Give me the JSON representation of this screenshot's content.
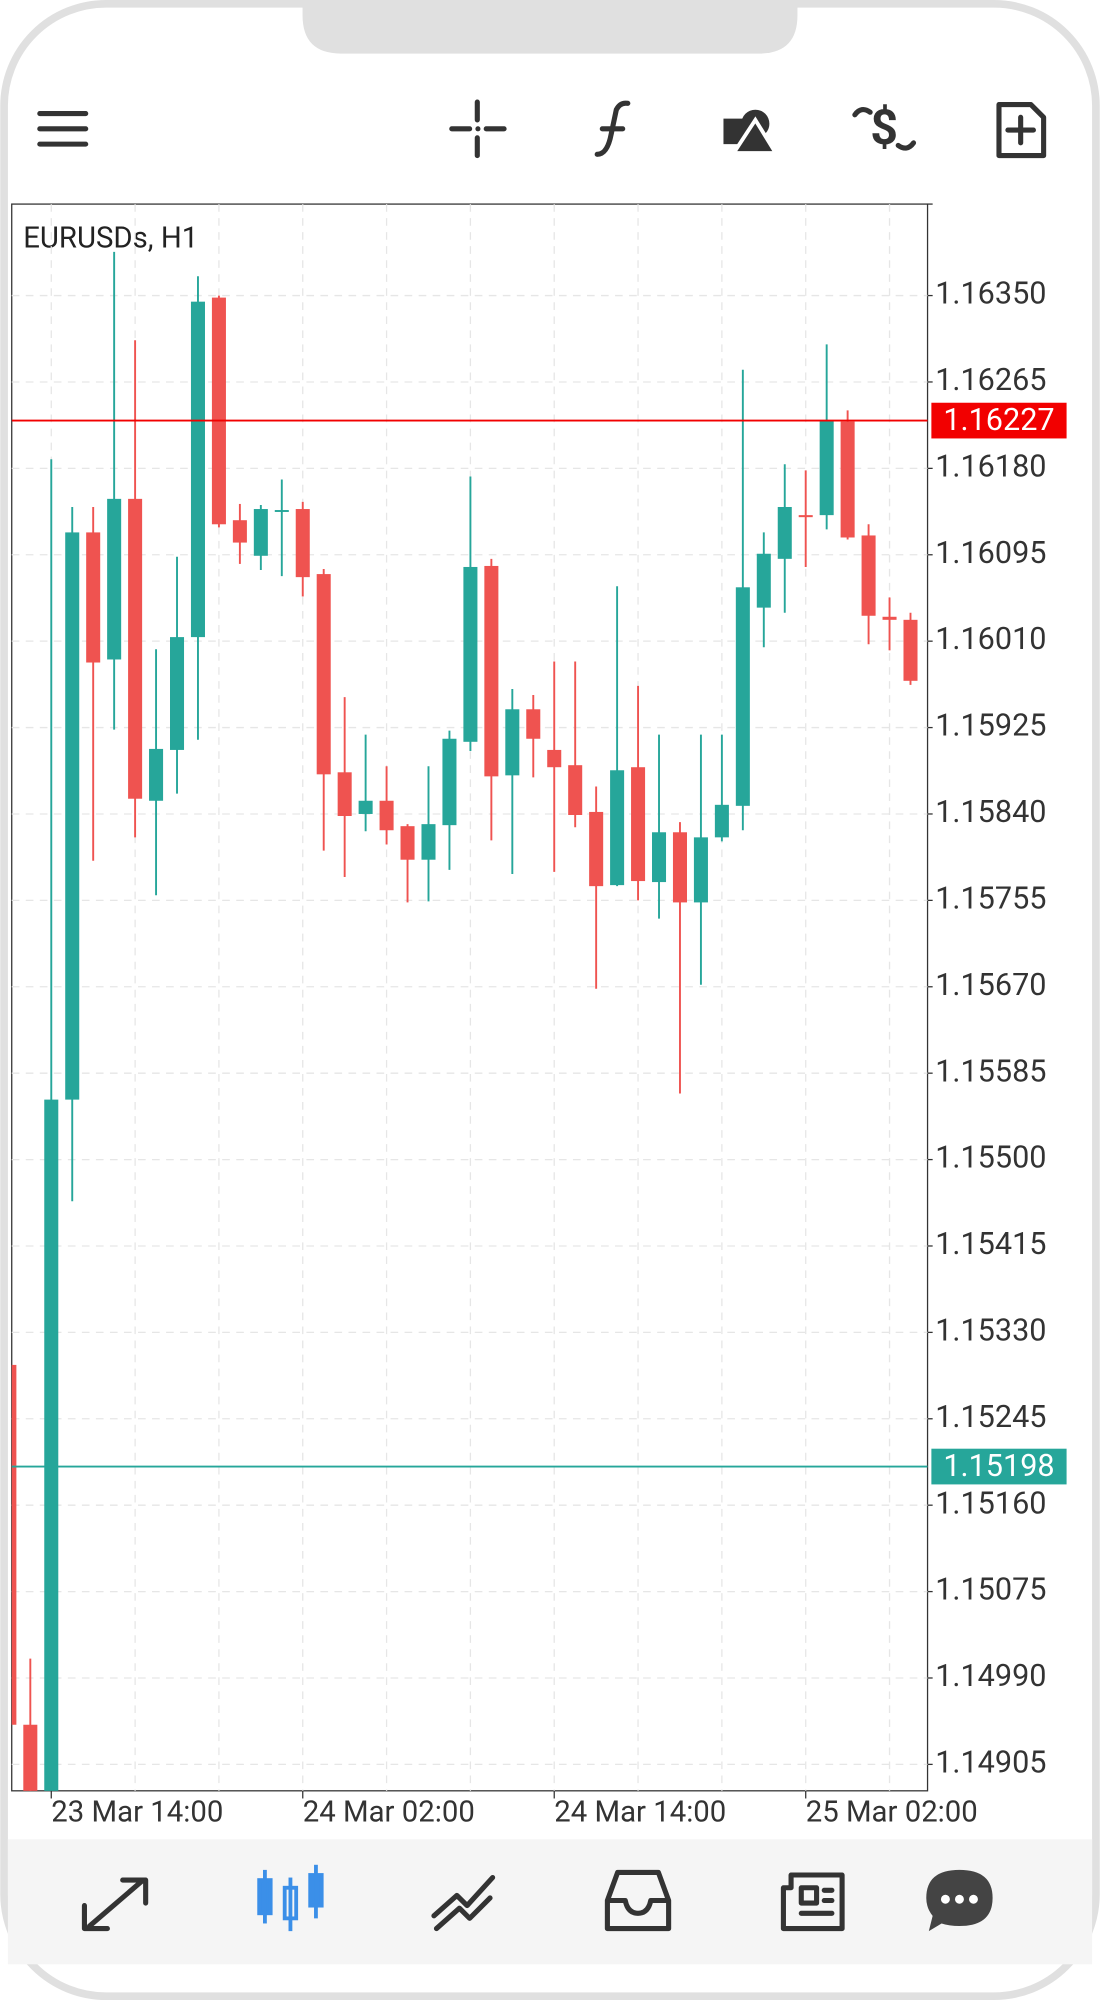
{
  "chart_data": {
    "type": "candlestick",
    "title": "EURUSDs, H1",
    "categories": [
      null,
      null,
      "23 Mar 14:00",
      null,
      null,
      null,
      null,
      null,
      null,
      null,
      null,
      null,
      null,
      null,
      "24 Mar 02:00",
      null,
      null,
      null,
      null,
      null,
      null,
      null,
      null,
      null,
      null,
      null,
      "24 Mar 14:00",
      null,
      null,
      null,
      null,
      null,
      null,
      null,
      null,
      null,
      null,
      null,
      "25 Mar 02:00",
      null,
      null,
      null,
      null,
      null
    ],
    "open": [
      1.15298,
      1.14944,
      1.14871,
      1.15559,
      1.16117,
      1.15992,
      1.1615,
      1.15853,
      1.15903,
      1.16014,
      1.16348,
      1.16129,
      1.16094,
      1.16138,
      1.1614,
      1.16076,
      1.15881,
      1.1584,
      1.15853,
      1.15828,
      1.15795,
      1.15829,
      1.15911,
      1.16084,
      1.15878,
      1.15943,
      1.15903,
      1.15888,
      1.15842,
      1.1577,
      1.15886,
      1.15773,
      1.15822,
      1.15753,
      1.15817,
      1.15848,
      1.16043,
      1.16091,
      1.16134,
      1.16134,
      1.16226,
      1.16114,
      1.16034,
      1.16031
    ],
    "high": [
      1.15298,
      1.15009,
      1.16189,
      1.16142,
      1.16142,
      1.16393,
      1.16306,
      1.16002,
      1.16093,
      1.16369,
      1.1635,
      1.16145,
      1.16144,
      1.16169,
      1.16147,
      1.16081,
      1.15955,
      1.15918,
      1.15887,
      1.1583,
      1.15887,
      1.15922,
      1.16172,
      1.16091,
      1.15963,
      1.15957,
      1.1599,
      1.1599,
      1.15867,
      1.16064,
      1.15966,
      1.15918,
      1.15832,
      1.15918,
      1.15918,
      1.16277,
      1.16117,
      1.16184,
      1.16178,
      1.16302,
      1.16237,
      1.16125,
      1.16053,
      1.16038
    ],
    "low": [
      1.14944,
      1.14859,
      1.14859,
      1.15459,
      1.15794,
      1.15923,
      1.15817,
      1.1576,
      1.1586,
      1.15913,
      1.16122,
      1.16086,
      1.1608,
      1.16074,
      1.16054,
      1.15804,
      1.15778,
      1.15823,
      1.1581,
      1.15753,
      1.15754,
      1.15785,
      1.15902,
      1.15814,
      1.15781,
      1.15876,
      1.15783,
      1.15827,
      1.15668,
      1.15769,
      1.15755,
      1.15737,
      1.15565,
      1.15672,
      1.15813,
      1.15824,
      1.16004,
      1.16038,
      1.16083,
      1.1612,
      1.1611,
      1.16007,
      1.16001,
      1.15967
    ],
    "close": [
      1.14944,
      1.14871,
      1.15559,
      1.16117,
      1.15989,
      1.1615,
      1.15855,
      1.15904,
      1.16014,
      1.16344,
      1.16125,
      1.16107,
      1.1614,
      1.16139,
      1.16073,
      1.15879,
      1.15838,
      1.15853,
      1.15824,
      1.15795,
      1.1583,
      1.15914,
      1.16083,
      1.15877,
      1.15943,
      1.15914,
      1.15886,
      1.15839,
      1.15769,
      1.15883,
      1.15774,
      1.15822,
      1.15753,
      1.15817,
      1.15849,
      1.16063,
      1.16096,
      1.16142,
      1.16132,
      1.16227,
      1.16112,
      1.16035,
      1.16031,
      1.15971
    ],
    "up_color": "#26a69a",
    "down_color": "#ef5350",
    "ylim": [
      1.14879,
      1.1644
    ],
    "yticks": [
      {
        "value": 1.1635,
        "label": "1.16350"
      },
      {
        "value": 1.16265,
        "label": "1.16265"
      },
      {
        "value": 1.1618,
        "label": "1.16180"
      },
      {
        "value": 1.16095,
        "label": "1.16095"
      },
      {
        "value": 1.1601,
        "label": "1.16010"
      },
      {
        "value": 1.15925,
        "label": "1.15925"
      },
      {
        "value": 1.1584,
        "label": "1.15840"
      },
      {
        "value": 1.15755,
        "label": "1.15755"
      },
      {
        "value": 1.1567,
        "label": "1.15670"
      },
      {
        "value": 1.15585,
        "label": "1.15585"
      },
      {
        "value": 1.155,
        "label": "1.15500"
      },
      {
        "value": 1.15415,
        "label": "1.15415"
      },
      {
        "value": 1.1533,
        "label": "1.15330"
      },
      {
        "value": 1.15245,
        "label": "1.15245"
      },
      {
        "value": 1.1516,
        "label": "1.15160"
      },
      {
        "value": 1.15075,
        "label": "1.15075"
      },
      {
        "value": 1.1499,
        "label": "1.14990"
      },
      {
        "value": 1.14905,
        "label": "1.14905"
      }
    ],
    "price_lines": [
      {
        "value": 1.16227,
        "label": "1.16227",
        "color": "#f20000"
      },
      {
        "value": 1.15198,
        "label": "1.15198",
        "color": "#26a69a"
      }
    ],
    "grid": true
  }
}
